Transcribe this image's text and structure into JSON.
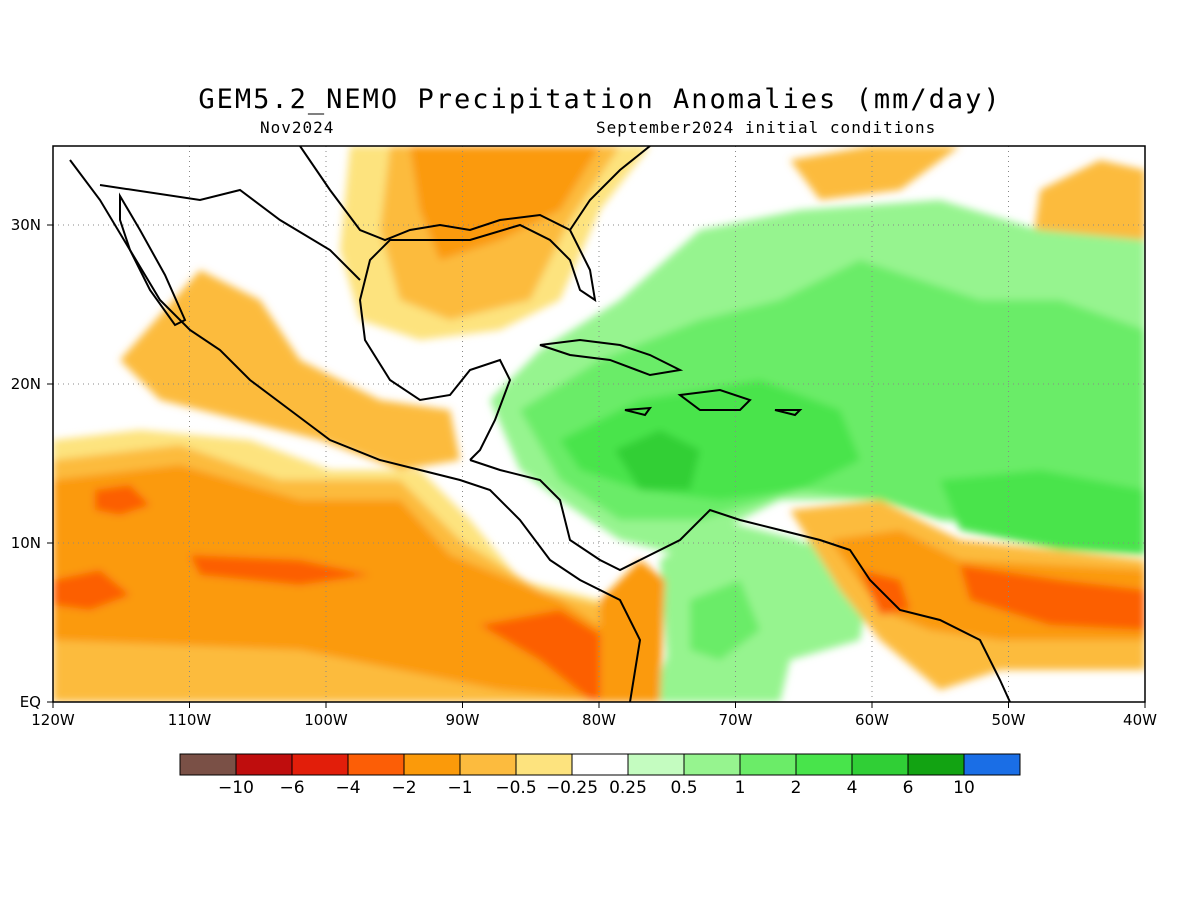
{
  "header": {
    "title": "GEM5.2_NEMO Precipitation Anomalies (mm/day)",
    "left_subtitle": "Nov2024",
    "right_subtitle": "September2024 initial conditions"
  },
  "map": {
    "lon_range": [
      -120,
      -40
    ],
    "lat_range": [
      0,
      35
    ],
    "lon_ticks": [
      "120W",
      "110W",
      "100W",
      "90W",
      "80W",
      "70W",
      "60W",
      "50W",
      "40W"
    ],
    "lat_ticks": [
      "EQ",
      "10N",
      "20N",
      "30N"
    ],
    "gridlines": true,
    "coastlines": true
  },
  "colorbar": {
    "colors": [
      "#7a5046",
      "#bf0d0d",
      "#e21e0a",
      "#fc5e06",
      "#fb9a0a",
      "#fcbb3e",
      "#fde37e",
      "#ffffff",
      "#c4fcc0",
      "#96f48f",
      "#6bec68",
      "#48e44b",
      "#30cf36",
      "#12a312",
      "#1a6ee6"
    ],
    "labels": [
      "−10",
      "−6",
      "−4",
      "−2",
      "−1",
      "−0.5",
      "−0.25",
      "0.25",
      "0.5",
      "1",
      "2",
      "4",
      "6",
      "10"
    ]
  }
}
